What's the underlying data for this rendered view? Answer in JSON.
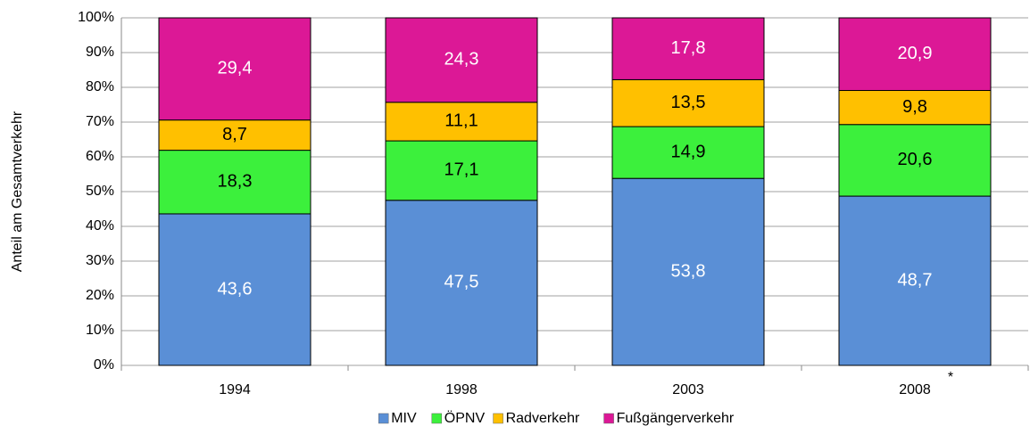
{
  "chart_data": {
    "type": "stacked_bar",
    "y_axis_label": "Anteil am Gesamtverkehr",
    "categories": [
      "1994",
      "1998",
      "2003",
      "2008"
    ],
    "annotation": "*",
    "series": [
      {
        "name": "MIV",
        "color": "#5a8fd6",
        "label_color": "#ffffff",
        "values": [
          43.6,
          47.5,
          53.8,
          48.7
        ],
        "value_labels": [
          "43,6",
          "47,5",
          "53,8",
          "48,7"
        ]
      },
      {
        "name": "ÖPNV",
        "color": "#3cf03c",
        "label_color": "#000000",
        "values": [
          18.3,
          17.1,
          14.9,
          20.6
        ],
        "value_labels": [
          "18,3",
          "17,1",
          "14,9",
          "20,6"
        ]
      },
      {
        "name": "Radverkehr",
        "color": "#ffc000",
        "label_color": "#000000",
        "values": [
          8.7,
          11.1,
          13.5,
          9.8
        ],
        "value_labels": [
          "8,7",
          "11,1",
          "13,5",
          "9,8"
        ]
      },
      {
        "name": "Fußgängerverkehr",
        "color": "#dc1896",
        "label_color": "#ffffff",
        "values": [
          29.4,
          24.3,
          17.8,
          20.9
        ],
        "value_labels": [
          "29,4",
          "24,3",
          "17,8",
          "20,9"
        ]
      }
    ],
    "ylim": [
      0,
      100
    ],
    "yticks": [
      {
        "value": 0,
        "label": "0%"
      },
      {
        "value": 10,
        "label": "10%"
      },
      {
        "value": 20,
        "label": "20%"
      },
      {
        "value": 30,
        "label": "30%"
      },
      {
        "value": 40,
        "label": "40%"
      },
      {
        "value": 50,
        "label": "50%"
      },
      {
        "value": 60,
        "label": "60%"
      },
      {
        "value": 70,
        "label": "70%"
      },
      {
        "value": 80,
        "label": "80%"
      },
      {
        "value": 90,
        "label": "90%"
      },
      {
        "value": 100,
        "label": "100%"
      }
    ],
    "grid": true
  }
}
